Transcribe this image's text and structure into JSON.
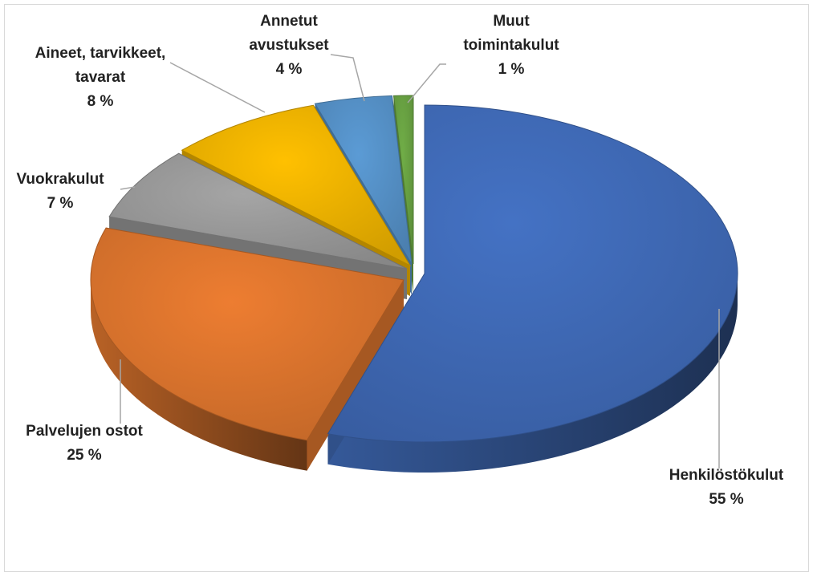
{
  "chart_data": {
    "type": "pie",
    "style": "3d-exploded",
    "slices": [
      {
        "label": [
          "Henkilöstökulut"
        ],
        "pct_label": "55 %",
        "value": 55,
        "color": "#4472c4"
      },
      {
        "label": [
          "Palvelujen ostot"
        ],
        "pct_label": "25 %",
        "value": 25,
        "color": "#ed7d31"
      },
      {
        "label": [
          "Vuokrakulut"
        ],
        "pct_label": "7 %",
        "value": 7,
        "color": "#a5a5a5"
      },
      {
        "label": [
          "Aineet, tarvikkeet,",
          "tavarat"
        ],
        "pct_label": "8 %",
        "value": 8,
        "color": "#ffc000"
      },
      {
        "label": [
          "Annetut",
          "avustukset"
        ],
        "pct_label": "4 %",
        "value": 4,
        "color": "#5b9bd5"
      },
      {
        "label": [
          "Muut",
          "toimintakulut"
        ],
        "pct_label": "1 %",
        "value": 1,
        "color": "#70ad47"
      }
    ],
    "legend": "none",
    "data_labels": "outside with leader lines"
  }
}
